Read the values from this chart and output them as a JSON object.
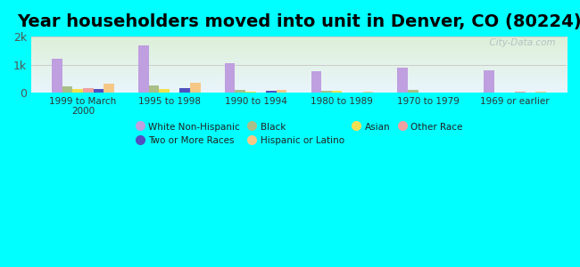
{
  "title": "Year householders moved into unit in Denver, CO (80224)",
  "background_color": "#00FFFF",
  "categories": [
    "1999 to March\n2000",
    "1995 to 1998",
    "1990 to 1994",
    "1980 to 1989",
    "1970 to 1979",
    "1969 or earlier"
  ],
  "series_order": [
    "White Non-Hispanic",
    "Black",
    "Asian",
    "Other Race",
    "Two or More Races",
    "Hispanic or Latino"
  ],
  "series": {
    "White Non-Hispanic": {
      "values": [
        1200,
        1700,
        1050,
        750,
        900,
        780
      ],
      "color": "#bf9fdf"
    },
    "Black": {
      "values": [
        220,
        270,
        95,
        50,
        110,
        0
      ],
      "color": "#aabf88"
    },
    "Asian": {
      "values": [
        130,
        140,
        25,
        55,
        0,
        0
      ],
      "color": "#f0e050"
    },
    "Other Race": {
      "values": [
        160,
        0,
        0,
        0,
        0,
        25
      ],
      "color": "#f0a0a0"
    },
    "Two or More Races": {
      "values": [
        120,
        170,
        55,
        0,
        0,
        0
      ],
      "color": "#5050c0"
    },
    "Hispanic or Latino": {
      "values": [
        320,
        340,
        90,
        25,
        15,
        40
      ],
      "color": "#f5c888"
    }
  },
  "ylim": [
    0,
    2000
  ],
  "yticks": [
    0,
    1000,
    2000
  ],
  "ytick_labels": [
    "0",
    "1k",
    "2k"
  ],
  "grid_color": "#cccccc",
  "title_fontsize": 14,
  "watermark": "  City-Data.com",
  "legend_items": [
    [
      "White Non-Hispanic",
      "#bf9fdf"
    ],
    [
      "Two or More Races",
      "#5050c0"
    ],
    [
      "Black",
      "#aabf88"
    ],
    [
      "Hispanic or Latino",
      "#f5c888"
    ],
    [
      "Asian",
      "#f0e050"
    ],
    [
      "Other Race",
      "#f0a0a0"
    ]
  ]
}
